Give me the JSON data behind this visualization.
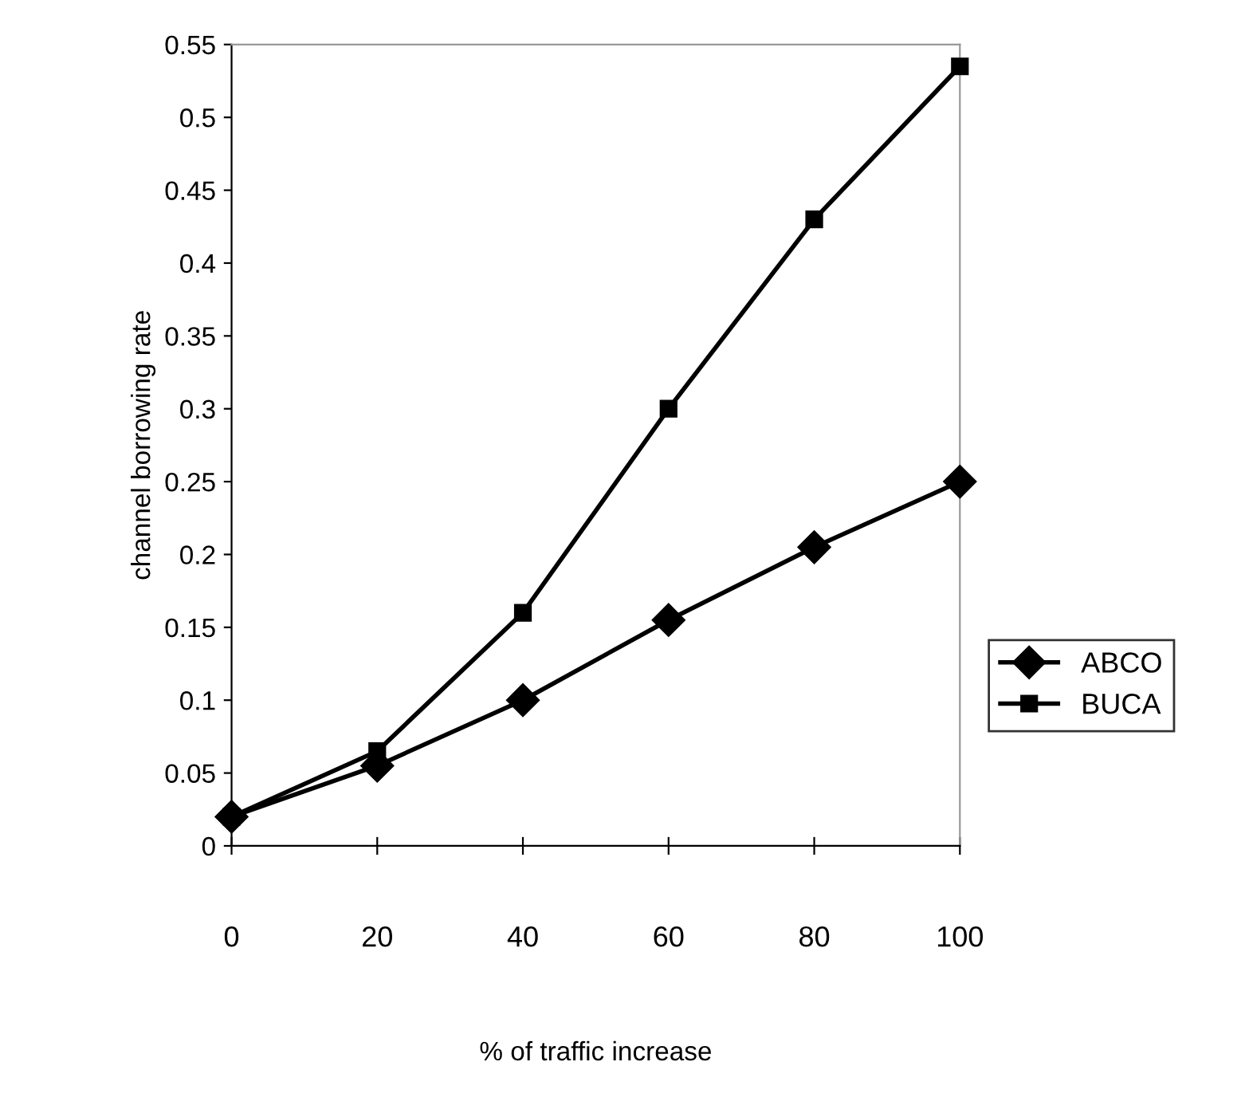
{
  "chart_data": {
    "type": "line",
    "xlabel": "% of traffic increase",
    "ylabel": "channel borrowing rate",
    "x": [
      0,
      20,
      40,
      60,
      80,
      100
    ],
    "series": [
      {
        "name": "ABCO",
        "color": "#000000",
        "marker": "diamond",
        "values": [
          0.02,
          0.055,
          0.1,
          0.155,
          0.205,
          0.25
        ]
      },
      {
        "name": "BUCA",
        "color": "#000000",
        "marker": "square",
        "values": [
          0.02,
          0.065,
          0.16,
          0.3,
          0.43,
          0.535
        ]
      }
    ],
    "xlim": [
      0,
      100
    ],
    "xticks": [
      0,
      20,
      40,
      60,
      80,
      100
    ],
    "ylim": [
      0,
      0.55
    ],
    "yticks": [
      {
        "value": 0,
        "label": "0"
      },
      0.05,
      0.1,
      0.15,
      0.2,
      0.25,
      0.3,
      0.35,
      0.4,
      0.45,
      0.5,
      0.55
    ],
    "grid": false,
    "legend": "right",
    "line_style": "solid"
  }
}
